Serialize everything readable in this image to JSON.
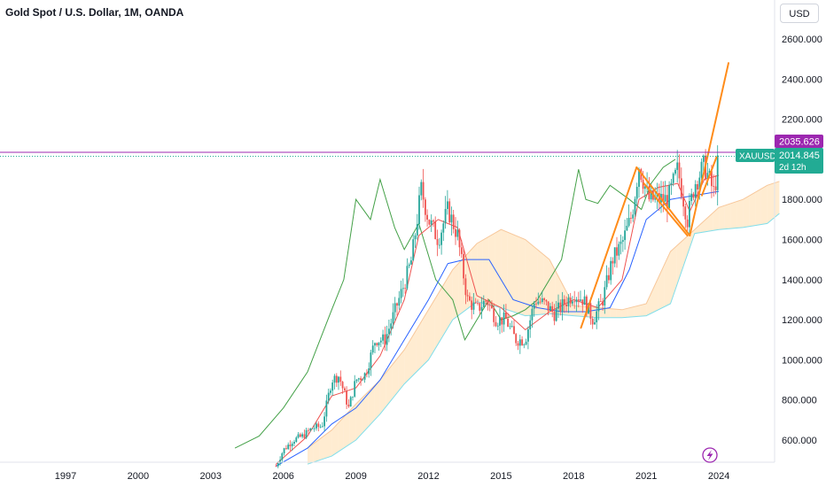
{
  "header": {
    "title": "Gold Spot / U.S. Dollar, 1M, OANDA",
    "currency": "USD"
  },
  "price_tags": {
    "resistance": {
      "value": "2035.626",
      "color": "#9c27b0"
    },
    "symbol": "XAUUSD",
    "last": {
      "value": "2014.845",
      "color": "#22ab94"
    },
    "countdown": "2d 12h"
  },
  "colors": {
    "candle_up": "#26a69a",
    "candle_down": "#ef5350",
    "conversion_line": "#ef5350",
    "base_line": "#2962ff",
    "lagging_span": "#43a047",
    "cloud_bear": "#ffe0b2",
    "cloud_bull": "#b2ebf2",
    "pattern": "#ff8c1a",
    "resistance_line": "#9c27b0"
  },
  "icons": {
    "bottom_right": "lightning-bolt-icon"
  },
  "chart_data": {
    "type": "candlestick",
    "title": "Gold Spot / U.S. Dollar, 1M, OANDA",
    "xlabel": "",
    "ylabel": "",
    "x_ticks": [
      "1997",
      "2000",
      "2003",
      "2006",
      "2009",
      "2012",
      "2015",
      "2018",
      "2021",
      "2024"
    ],
    "y_ticks": [
      "600.000",
      "800.000",
      "1000.000",
      "1200.000",
      "1400.000",
      "1600.000",
      "1800.000",
      "2000.000",
      "2200.000",
      "2400.000",
      "2600.000"
    ],
    "ylim": [
      470,
      2700
    ],
    "xlim": [
      1995.0,
      2027.3
    ],
    "grid": false,
    "scale": "linear",
    "horizontal_line": 2035.626,
    "last_price": 2014.845,
    "price_series": {
      "x": [
        2005.7,
        2006.0,
        2006.4,
        2006.8,
        2007.2,
        2007.6,
        2008.0,
        2008.3,
        2008.7,
        2009.0,
        2009.4,
        2009.8,
        2010.2,
        2010.6,
        2011.0,
        2011.3,
        2011.7,
        2012.0,
        2012.4,
        2012.8,
        2013.2,
        2013.6,
        2014.0,
        2014.4,
        2014.8,
        2015.2,
        2015.6,
        2016.0,
        2016.4,
        2016.8,
        2017.2,
        2017.6,
        2018.0,
        2018.4,
        2018.8,
        2019.2,
        2019.6,
        2020.0,
        2020.4,
        2020.7,
        2021.1,
        2021.5,
        2021.9,
        2022.3,
        2022.7,
        2023.0,
        2023.4,
        2023.8,
        2024.0
      ],
      "y": [
        470,
        550,
        600,
        620,
        660,
        670,
        900,
        920,
        760,
        900,
        930,
        1100,
        1100,
        1240,
        1380,
        1500,
        1850,
        1700,
        1600,
        1750,
        1620,
        1300,
        1250,
        1300,
        1200,
        1200,
        1100,
        1100,
        1300,
        1280,
        1230,
        1280,
        1330,
        1300,
        1200,
        1300,
        1500,
        1580,
        1720,
        1970,
        1800,
        1800,
        1800,
        1950,
        1700,
        1880,
        1970,
        1830,
        2014.845
      ]
    },
    "conversion_line": {
      "x": [
        2005.7,
        2007.0,
        2008.0,
        2009.0,
        2010.0,
        2011.0,
        2011.6,
        2012.4,
        2013.2,
        2014.0,
        2015.0,
        2016.0,
        2017.0,
        2018.0,
        2019.0,
        2020.0,
        2020.7,
        2021.5,
        2022.3,
        2022.8,
        2023.4,
        2024.0
      ],
      "y": [
        480,
        620,
        820,
        860,
        1020,
        1300,
        1620,
        1700,
        1660,
        1320,
        1260,
        1150,
        1240,
        1300,
        1260,
        1400,
        1800,
        1860,
        1880,
        1740,
        1900,
        1920
      ]
    },
    "base_line": {
      "x": [
        2005.7,
        2007.0,
        2008.0,
        2009.0,
        2010.0,
        2011.0,
        2012.0,
        2012.8,
        2013.5,
        2014.5,
        2015.5,
        2016.5,
        2017.5,
        2018.5,
        2019.5,
        2020.3,
        2021.0,
        2022.0,
        2023.0,
        2024.0
      ],
      "y": [
        470,
        560,
        680,
        760,
        900,
        1100,
        1300,
        1480,
        1500,
        1500,
        1300,
        1260,
        1240,
        1240,
        1260,
        1450,
        1700,
        1800,
        1820,
        1840
      ]
    },
    "lagging_span": {
      "x": [
        2004.0,
        2005.0,
        2006.0,
        2007.0,
        2008.0,
        2008.5,
        2009.0,
        2009.6,
        2010.0,
        2010.6,
        2011.0,
        2011.6,
        2012.3,
        2013.0,
        2013.5,
        2014.0,
        2014.5,
        2015.0,
        2015.5,
        2016.0,
        2016.5,
        2017.0,
        2017.5,
        2018.2,
        2018.5,
        2019.0,
        2019.5,
        2020.3,
        2020.8,
        2021.2,
        2021.7,
        2022.2
      ],
      "y": [
        560,
        620,
        760,
        940,
        1250,
        1400,
        1800,
        1700,
        1900,
        1660,
        1550,
        1680,
        1400,
        1300,
        1100,
        1200,
        1300,
        1200,
        1220,
        1250,
        1300,
        1400,
        1500,
        1950,
        1800,
        1780,
        1870,
        1800,
        1750,
        1880,
        1960,
        2000
      ]
    },
    "cloud_span_a": {
      "x": [
        2007.0,
        2008.0,
        2009.0,
        2010.0,
        2011.0,
        2012.0,
        2013.0,
        2014.0,
        2015.0,
        2016.0,
        2017.0,
        2018.0,
        2019.0,
        2020.0,
        2021.0,
        2022.0,
        2023.0,
        2024.0,
        2025.0,
        2026.0,
        2026.5
      ],
      "y": [
        560,
        650,
        780,
        900,
        1050,
        1250,
        1450,
        1580,
        1650,
        1600,
        1500,
        1270,
        1260,
        1250,
        1280,
        1540,
        1650,
        1760,
        1800,
        1870,
        1890
      ]
    },
    "cloud_span_b": {
      "x": [
        2007.0,
        2008.0,
        2009.0,
        2010.0,
        2011.0,
        2012.0,
        2013.0,
        2014.0,
        2015.0,
        2016.0,
        2017.0,
        2018.0,
        2019.0,
        2020.0,
        2021.0,
        2022.0,
        2023.0,
        2024.0,
        2025.0,
        2026.0,
        2026.5
      ],
      "y": [
        480,
        520,
        600,
        730,
        880,
        1000,
        1200,
        1290,
        1260,
        1220,
        1230,
        1220,
        1210,
        1210,
        1220,
        1280,
        1630,
        1650,
        1660,
        1680,
        1730
      ]
    },
    "pattern_lines": [
      {
        "x": [
          2018.3,
          2020.6
        ],
        "y": [
          1160,
          1960
        ]
      },
      {
        "x": [
          2020.6,
          2022.8
        ],
        "y": [
          1960,
          1620
        ]
      },
      {
        "x": [
          2020.9,
          2022.7
        ],
        "y": [
          1880,
          1620
        ]
      },
      {
        "x": [
          2022.8,
          2024.4
        ],
        "y": [
          1620,
          2480
        ]
      },
      {
        "x": [
          2023.3,
          2023.9
        ],
        "y": [
          1820,
          2010
        ]
      }
    ]
  }
}
